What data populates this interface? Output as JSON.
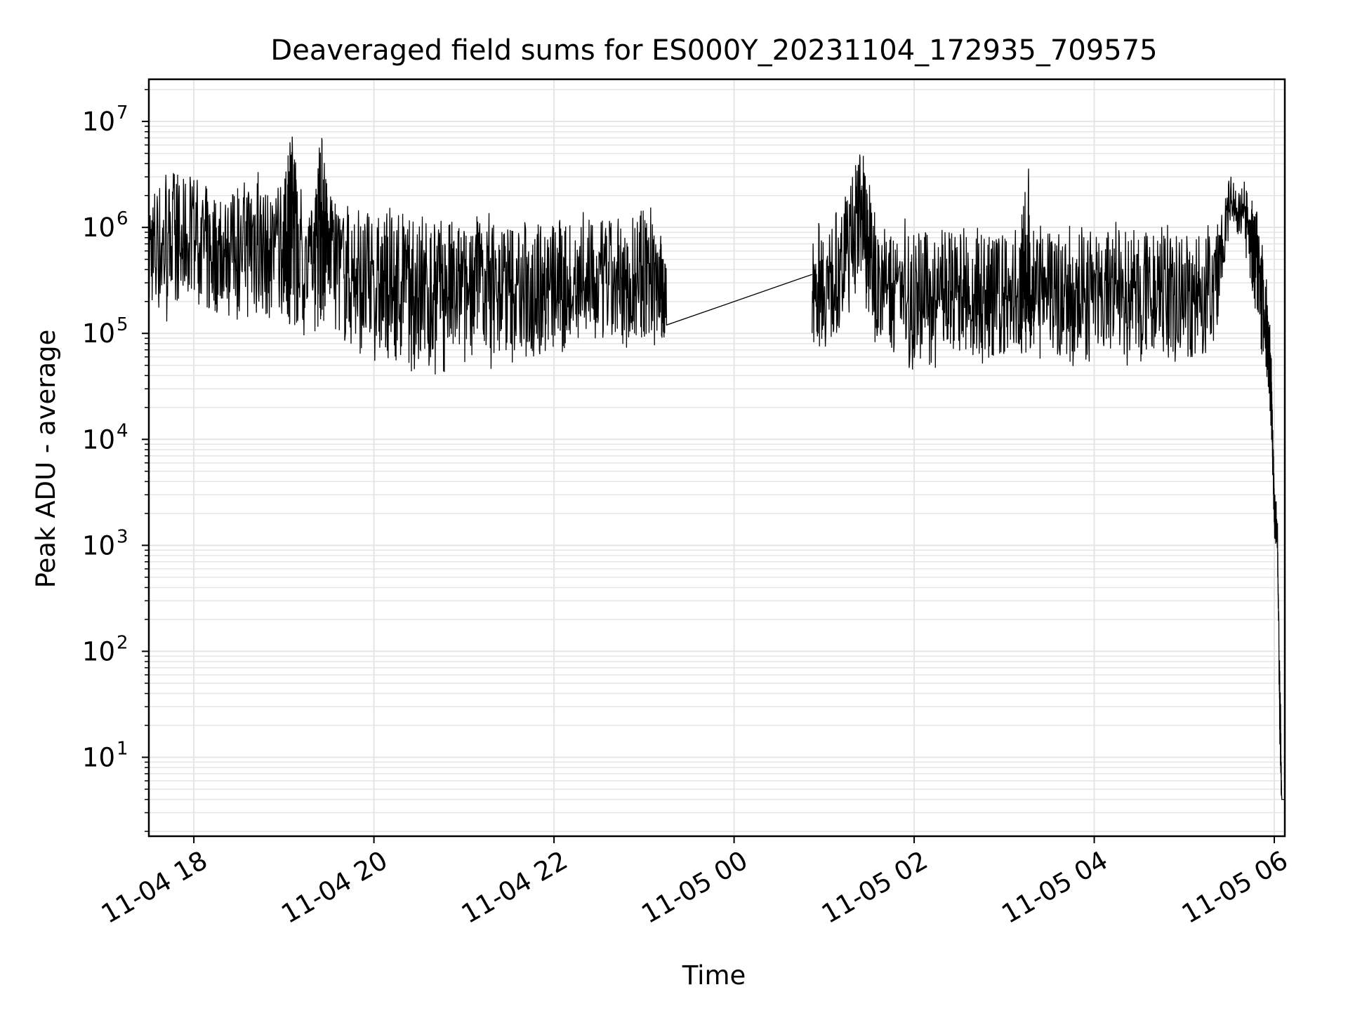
{
  "chart_data": {
    "type": "line",
    "title": "Deaveraged field sums for ES000Y_20231104_172935_709575",
    "xlabel": "Time",
    "ylabel": "Peak ADU - average",
    "x_scale": "time",
    "y_scale": "log",
    "xlim": [
      "2023-11-04T17:30",
      "2023-11-05T06:07"
    ],
    "ylim": [
      1.8,
      25000000
    ],
    "grid": true,
    "line_color": "#000000",
    "grid_color": "#e5e5e5",
    "x_ticks": [
      {
        "t": "2023-11-04T18:00",
        "label": "11-04 18"
      },
      {
        "t": "2023-11-04T20:00",
        "label": "11-04 20"
      },
      {
        "t": "2023-11-04T22:00",
        "label": "11-04 22"
      },
      {
        "t": "2023-11-05T00:00",
        "label": "11-05 00"
      },
      {
        "t": "2023-11-05T02:00",
        "label": "11-05 02"
      },
      {
        "t": "2023-11-05T04:00",
        "label": "11-05 04"
      },
      {
        "t": "2023-11-05T06:00",
        "label": "11-05 06"
      }
    ],
    "y_ticks": [
      {
        "value": 10,
        "base": "10",
        "exp": "1"
      },
      {
        "value": 100,
        "base": "10",
        "exp": "2"
      },
      {
        "value": 1000,
        "base": "10",
        "exp": "3"
      },
      {
        "value": 10000,
        "base": "10",
        "exp": "4"
      },
      {
        "value": 100000,
        "base": "10",
        "exp": "5"
      },
      {
        "value": 1000000,
        "base": "10",
        "exp": "6"
      },
      {
        "value": 10000000,
        "base": "10",
        "exp": "7"
      }
    ],
    "series": [
      {
        "x": [
          "2023-11-04T17:30",
          "2023-11-04T17:40",
          "2023-11-04T17:50",
          "2023-11-04T18:00",
          "2023-11-04T18:10",
          "2023-11-04T18:20",
          "2023-11-04T18:30",
          "2023-11-04T18:40",
          "2023-11-04T18:50",
          "2023-11-04T19:00",
          "2023-11-04T19:05",
          "2023-11-04T19:10",
          "2023-11-04T19:20",
          "2023-11-04T19:25",
          "2023-11-04T19:30",
          "2023-11-04T19:40",
          "2023-11-04T19:50",
          "2023-11-04T20:00",
          "2023-11-04T20:10",
          "2023-11-04T20:20",
          "2023-11-04T20:30",
          "2023-11-04T20:40",
          "2023-11-04T20:50",
          "2023-11-04T21:00",
          "2023-11-04T21:10",
          "2023-11-04T21:20",
          "2023-11-04T21:30",
          "2023-11-04T21:40",
          "2023-11-04T21:50",
          "2023-11-04T22:00",
          "2023-11-04T22:10",
          "2023-11-04T22:20",
          "2023-11-04T22:30",
          "2023-11-04T22:40",
          "2023-11-04T22:50",
          "2023-11-04T23:00",
          "2023-11-04T23:10",
          "2023-11-04T23:15",
          "2023-11-05T00:52",
          "2023-11-05T01:00",
          "2023-11-05T01:10",
          "2023-11-05T01:20",
          "2023-11-05T01:25",
          "2023-11-05T01:30",
          "2023-11-05T01:40",
          "2023-11-05T01:50",
          "2023-11-05T02:00",
          "2023-11-05T02:10",
          "2023-11-05T02:20",
          "2023-11-05T02:30",
          "2023-11-05T02:40",
          "2023-11-05T02:50",
          "2023-11-05T03:00",
          "2023-11-05T03:10",
          "2023-11-05T03:15",
          "2023-11-05T03:20",
          "2023-11-05T03:30",
          "2023-11-05T03:40",
          "2023-11-05T03:50",
          "2023-11-05T04:00",
          "2023-11-05T04:10",
          "2023-11-05T04:20",
          "2023-11-05T04:30",
          "2023-11-05T04:40",
          "2023-11-05T04:50",
          "2023-11-05T05:00",
          "2023-11-05T05:10",
          "2023-11-05T05:20",
          "2023-11-05T05:30",
          "2023-11-05T05:40",
          "2023-11-05T05:45",
          "2023-11-05T05:50",
          "2023-11-05T05:55",
          "2023-11-05T05:58",
          "2023-11-05T06:00",
          "2023-11-05T06:02",
          "2023-11-05T06:04",
          "2023-11-05T06:05",
          "2023-11-05T06:07"
        ],
        "y": [
          900000,
          1200000,
          800000,
          1500000,
          1000000,
          900000,
          700000,
          1200000,
          800000,
          1100000,
          6000000,
          1000000,
          900000,
          3000000,
          1200000,
          600000,
          700000,
          400000,
          500000,
          300000,
          400000,
          350000,
          300000,
          400000,
          350000,
          300000,
          400000,
          350000,
          300000,
          400000,
          350000,
          300000,
          400000,
          350000,
          300000,
          250000,
          300000,
          120000,
          360000,
          500000,
          600000,
          1500000,
          2000000,
          1200000,
          400000,
          300000,
          250000,
          200000,
          180000,
          200000,
          220000,
          180000,
          200000,
          250000,
          220000,
          200000,
          230000,
          200000,
          210000,
          220000,
          250000,
          200000,
          230000,
          220000,
          200000,
          210000,
          180000,
          200000,
          2000000,
          1500000,
          1000000,
          500000,
          200000,
          40000,
          1500,
          1200,
          10,
          4,
          4
        ],
        "envelope_high": [
          3000000,
          4000000,
          3500000,
          4000000,
          3000000,
          2500000,
          3000000,
          5000000,
          2500000,
          3000000,
          12000000,
          2500000,
          2000000,
          11000000,
          2500000,
          1800000,
          1700000,
          1600000,
          1600000,
          1500000,
          1600000,
          1500000,
          1500000,
          1500000,
          1500000,
          1500000,
          1500000,
          1500000,
          1500000,
          1500000,
          1500000,
          1400000,
          1500000,
          1400000,
          1300000,
          2000000,
          1500000,
          500000,
          1500000,
          1400000,
          1800000,
          4000000,
          6500000,
          3500000,
          1400000,
          1300000,
          1200000,
          1100000,
          1200000,
          1100000,
          1000000,
          1100000,
          1000000,
          1000000,
          7500000,
          1000000,
          1100000,
          1000000,
          1100000,
          1000000,
          1100000,
          1200000,
          1000000,
          1100000,
          1200000,
          1100000,
          1000000,
          1200000,
          4000000,
          2800000,
          2500000,
          1800000,
          500000,
          60000,
          4500,
          2000,
          60,
          4,
          4
        ],
        "envelope_low": [
          150000,
          100000,
          150000,
          200000,
          100000,
          150000,
          120000,
          150000,
          100000,
          150000,
          80000,
          100000,
          70000,
          100000,
          150000,
          60000,
          50000,
          40000,
          45000,
          40000,
          45000,
          40000,
          40000,
          45000,
          50000,
          45000,
          50000,
          50000,
          55000,
          50000,
          55000,
          55000,
          60000,
          60000,
          55000,
          65000,
          70000,
          70000,
          60000,
          55000,
          80000,
          200000,
          400000,
          90000,
          60000,
          50000,
          45000,
          40000,
          45000,
          50000,
          45000,
          50000,
          45000,
          50000,
          50000,
          55000,
          50000,
          45000,
          50000,
          55000,
          50000,
          45000,
          50000,
          55000,
          45000,
          40000,
          50000,
          60000,
          800000,
          600000,
          200000,
          80000,
          30000,
          10000,
          900,
          900,
          5,
          4,
          4
        ]
      }
    ]
  }
}
